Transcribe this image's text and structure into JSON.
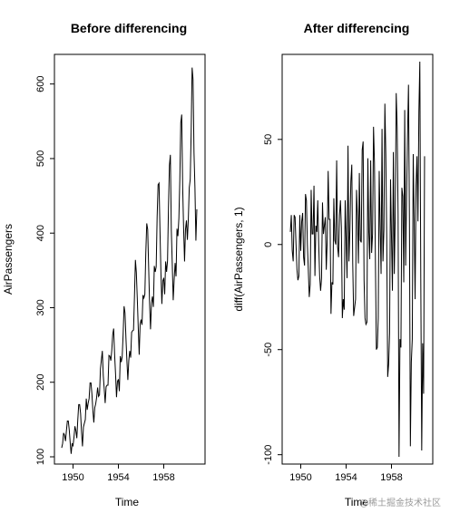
{
  "chart_data": [
    {
      "type": "line",
      "title": "Before differencing",
      "xlabel": "Time",
      "ylabel": "AirPassengers",
      "xlim": [
        1949,
        1961
      ],
      "ylim": [
        100,
        630
      ],
      "x_ticks": [
        1950,
        1954,
        1958
      ],
      "y_ticks": [
        100,
        200,
        300,
        400,
        500,
        600
      ],
      "x_start": 1949,
      "x_step": 0.0833333333,
      "series": [
        {
          "values": [
            112,
            118,
            132,
            129,
            121,
            135,
            148,
            148,
            136,
            119,
            104,
            118,
            115,
            126,
            141,
            135,
            125,
            149,
            170,
            170,
            158,
            133,
            114,
            140,
            145,
            150,
            178,
            163,
            172,
            178,
            199,
            199,
            184,
            162,
            146,
            166,
            171,
            180,
            193,
            181,
            183,
            218,
            230,
            242,
            209,
            191,
            172,
            194,
            196,
            196,
            236,
            235,
            229,
            243,
            264,
            272,
            237,
            211,
            180,
            201,
            204,
            188,
            235,
            227,
            234,
            264,
            302,
            293,
            259,
            229,
            203,
            229,
            242,
            233,
            267,
            269,
            270,
            315,
            364,
            347,
            312,
            274,
            237,
            278,
            284,
            277,
            317,
            313,
            318,
            374,
            413,
            405,
            355,
            306,
            271,
            306,
            315,
            301,
            356,
            348,
            355,
            422,
            465,
            467,
            404,
            347,
            305,
            336,
            340,
            318,
            362,
            348,
            363,
            435,
            491,
            505,
            404,
            359,
            310,
            337,
            360,
            342,
            406,
            396,
            420,
            472,
            548,
            559,
            463,
            407,
            362,
            405,
            417,
            391,
            419,
            461,
            472,
            535,
            622,
            606,
            508,
            461,
            390,
            432
          ]
        }
      ]
    },
    {
      "type": "line",
      "title": "After differencing",
      "xlabel": "Time",
      "ylabel": "diff(AirPassengers, 1)",
      "xlim": [
        1949,
        1961
      ],
      "ylim": [
        -101,
        87
      ],
      "x_ticks": [
        1950,
        1954,
        1958
      ],
      "y_ticks": [
        -100,
        -50,
        0,
        50
      ],
      "x_start": 1949.0833333,
      "x_step": 0.0833333333,
      "series": [
        {
          "values": [
            6,
            14,
            -3,
            -8,
            14,
            13,
            0,
            -12,
            -17,
            -15,
            14,
            -3,
            11,
            15,
            -6,
            -10,
            24,
            21,
            0,
            -12,
            -25,
            -19,
            26,
            5,
            5,
            28,
            -15,
            9,
            6,
            21,
            0,
            -15,
            -22,
            -16,
            20,
            5,
            9,
            13,
            -12,
            2,
            35,
            12,
            12,
            -33,
            -18,
            -19,
            22,
            2,
            0,
            40,
            -1,
            -6,
            14,
            21,
            8,
            -35,
            -26,
            -31,
            21,
            3,
            -16,
            47,
            -8,
            7,
            30,
            38,
            -9,
            -34,
            -30,
            -26,
            26,
            13,
            -9,
            34,
            2,
            1,
            45,
            49,
            -17,
            -35,
            -38,
            -37,
            41,
            6,
            -7,
            40,
            -4,
            5,
            56,
            39,
            -8,
            -50,
            -49,
            -35,
            35,
            9,
            -14,
            55,
            -8,
            7,
            67,
            43,
            2,
            -63,
            -57,
            -42,
            31,
            4,
            -22,
            44,
            -14,
            15,
            72,
            56,
            14,
            -101,
            -45,
            -49,
            27,
            23,
            -18,
            64,
            -10,
            24,
            52,
            76,
            11,
            -96,
            -56,
            -45,
            43,
            12,
            -26,
            28,
            42,
            11,
            63,
            87,
            -16,
            -98,
            -47,
            -71,
            42
          ]
        }
      ]
    }
  ],
  "watermark": "@稀土掘金技术社区"
}
